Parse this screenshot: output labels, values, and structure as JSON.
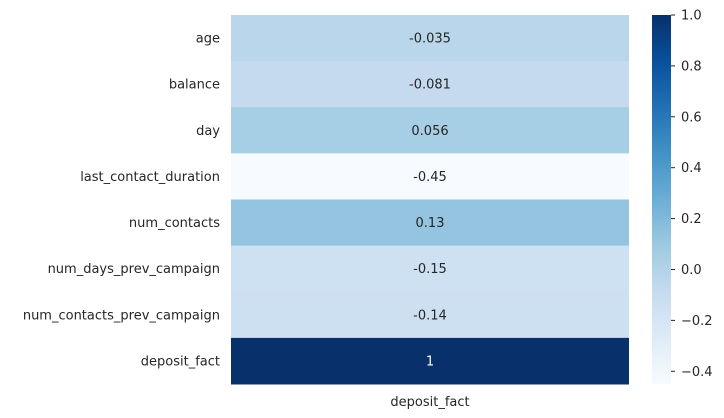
{
  "chart_data": {
    "type": "heatmap",
    "rows": [
      "age",
      "balance",
      "day",
      "last_contact_duration",
      "num_contacts",
      "num_days_prev_campaign",
      "num_contacts_prev_campaign",
      "deposit_fact"
    ],
    "columns": [
      "deposit_fact"
    ],
    "values": [
      -0.035,
      -0.081,
      0.056,
      -0.45,
      0.13,
      -0.15,
      -0.14,
      1
    ],
    "value_labels": [
      "-0.035",
      "-0.081",
      "0.056",
      "-0.45",
      "0.13",
      "-0.15",
      "-0.14",
      "1"
    ],
    "colorbar": {
      "range": [
        -0.45,
        1
      ],
      "ticks": [
        1.0,
        0.8,
        0.6,
        0.4,
        0.2,
        0.0,
        -0.2,
        -0.4
      ],
      "tick_labels": [
        "1.0",
        "0.8",
        "0.6",
        "0.4",
        "0.2",
        "0.0",
        "−0.2",
        "−0.4"
      ],
      "colormap": "Blues",
      "colors": [
        "#f7fbff",
        "#deebf7",
        "#c6dbef",
        "#9ecae1",
        "#6baed6",
        "#4292c6",
        "#2171b5",
        "#08519c",
        "#08306b"
      ]
    },
    "annotation_dark_text": "#262626",
    "annotation_light_text": "#ffffff",
    "axis_label_color": "#262626"
  }
}
